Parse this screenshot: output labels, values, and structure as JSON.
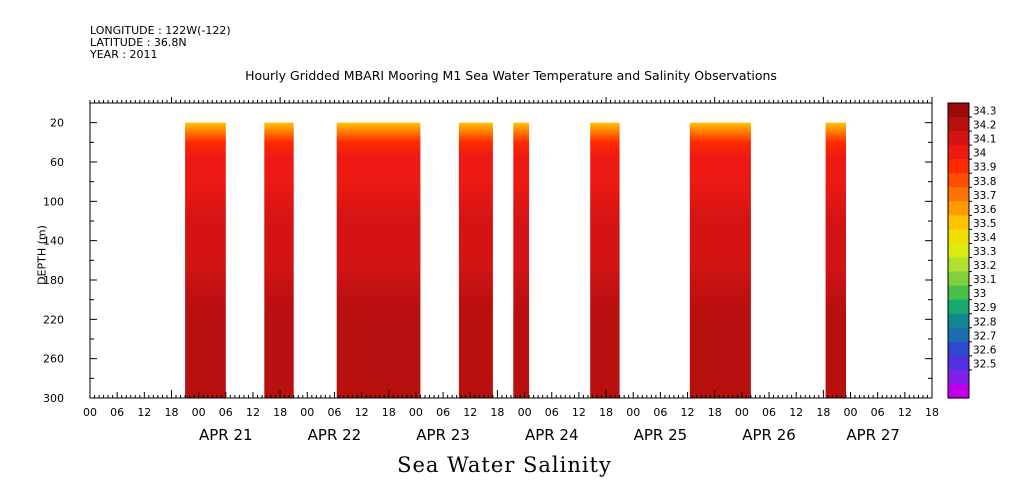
{
  "header": {
    "longitude": "LONGITUDE : 122W(-122)",
    "latitude": "LATITUDE : 36.8N",
    "year": "YEAR : 2011"
  },
  "chart_data": {
    "type": "heatmap",
    "title": "Hourly Gridded MBARI Mooring M1 Sea Water Temperature and Salinity Observations",
    "bottom_label": "Sea Water Salinity",
    "ylabel": "DEPTH (m)",
    "ylim": [
      0,
      300
    ],
    "y_reversed": true,
    "y_ticks": [
      20,
      60,
      100,
      140,
      180,
      220,
      260,
      300
    ],
    "x_range_hours": [
      -18,
      168
    ],
    "x_hour_ticks": [
      "00",
      "06",
      "12",
      "18",
      "00",
      "06",
      "12",
      "18",
      "00",
      "06",
      "12",
      "18",
      "00",
      "06",
      "12",
      "18",
      "00",
      "06",
      "12",
      "18",
      "00",
      "06",
      "12",
      "18",
      "00",
      "06",
      "12",
      "18",
      "00",
      "06",
      "12",
      "18"
    ],
    "x_hour_tick_positions": [
      0,
      6,
      12,
      18,
      24,
      30,
      36,
      42,
      48,
      54,
      60,
      66,
      72,
      78,
      84,
      90,
      96,
      102,
      108,
      114,
      120,
      126,
      132,
      138,
      144,
      150,
      156,
      162,
      168,
      174,
      180,
      186
    ],
    "x_day_labels": [
      "APR 21",
      "APR 22",
      "APR 23",
      "APR 24",
      "APR 25",
      "APR 26",
      "APR 27"
    ],
    "x_day_label_hours": [
      12,
      36,
      60,
      84,
      108,
      132,
      155
    ],
    "colorbar": {
      "levels": [
        "34.3",
        "34.2",
        "34.1",
        "34",
        "33.9",
        "33.8",
        "33.7",
        "33.6",
        "33.5",
        "33.4",
        "33.3",
        "33.2",
        "33.1",
        "33",
        "32.9",
        "32.8",
        "32.7",
        "32.6",
        "32.5"
      ],
      "colors": [
        "#9a0a0a",
        "#b80f0f",
        "#d41414",
        "#ec1a12",
        "#ff2a00",
        "#ff4e00",
        "#ff7400",
        "#ff9b00",
        "#ffc200",
        "#f0e000",
        "#d8ec10",
        "#b0e030",
        "#80d040",
        "#48c048",
        "#18a870",
        "#108890",
        "#1c6cb0",
        "#3048d0",
        "#5030e0",
        "#8020e8",
        "#c000e8"
      ]
    },
    "data_blocks": [
      {
        "start_hour": 3,
        "end_hour": 12,
        "depth_range": [
          20,
          300
        ]
      },
      {
        "start_hour": 20.5,
        "end_hour": 27,
        "depth_range": [
          20,
          300
        ]
      },
      {
        "start_hour": 36.5,
        "end_hour": 55,
        "depth_range": [
          20,
          300
        ]
      },
      {
        "start_hour": 63.5,
        "end_hour": 71,
        "depth_range": [
          20,
          300
        ]
      },
      {
        "start_hour": 75.5,
        "end_hour": 79,
        "depth_range": [
          20,
          300
        ]
      },
      {
        "start_hour": 92.5,
        "end_hour": 99,
        "depth_range": [
          20,
          300
        ]
      },
      {
        "start_hour": 114.5,
        "end_hour": 128,
        "depth_range": [
          20,
          300
        ]
      },
      {
        "start_hour": 144.5,
        "end_hour": 149,
        "depth_range": [
          20,
          300
        ]
      }
    ],
    "salinity_profile": [
      {
        "depth": 20,
        "value": 33.5
      },
      {
        "depth": 30,
        "value": 33.7
      },
      {
        "depth": 40,
        "value": 33.85
      },
      {
        "depth": 55,
        "value": 33.95
      },
      {
        "depth": 80,
        "value": 34.0
      },
      {
        "depth": 120,
        "value": 34.05
      },
      {
        "depth": 160,
        "value": 34.1
      },
      {
        "depth": 210,
        "value": 34.15
      },
      {
        "depth": 250,
        "value": 34.2
      },
      {
        "depth": 280,
        "value": 34.2
      },
      {
        "depth": 300,
        "value": 34.15
      }
    ]
  }
}
